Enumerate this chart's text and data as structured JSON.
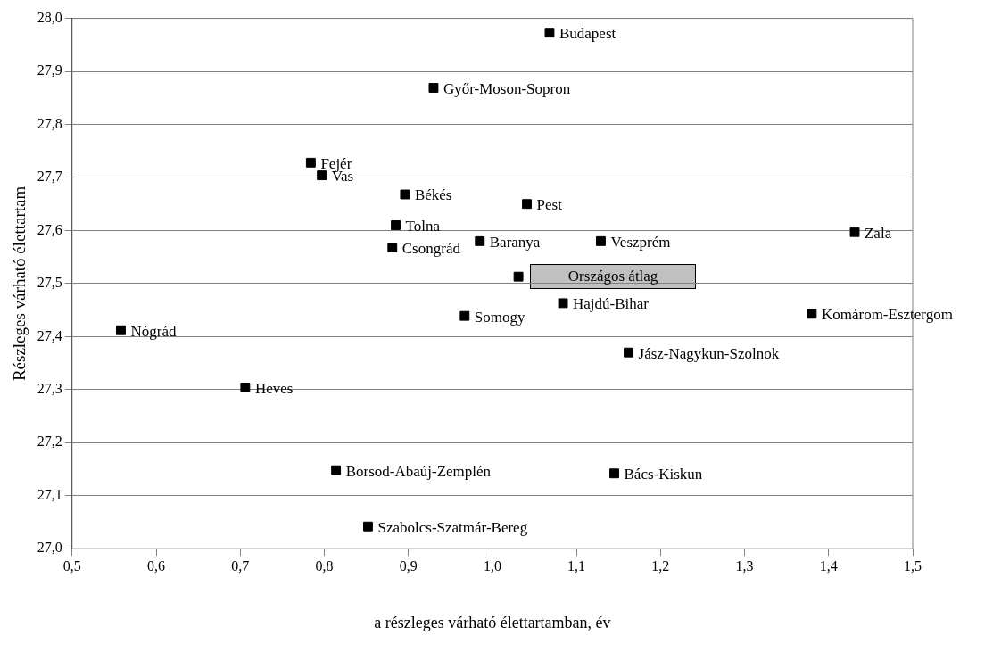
{
  "chart_data": {
    "type": "scatter",
    "xlabel": "a részleges várható élettartamban, év",
    "ylabel": "Részleges várható élettartam",
    "xlim": [
      0.5,
      1.5
    ],
    "xticks": [
      {
        "value": 0.5,
        "label": "0,5"
      },
      {
        "value": 0.6,
        "label": "0,6"
      },
      {
        "value": 0.7,
        "label": "0,7"
      },
      {
        "value": 0.8,
        "label": "0,8"
      },
      {
        "value": 0.9,
        "label": "0,9"
      },
      {
        "value": 1.0,
        "label": "1,0"
      },
      {
        "value": 1.1,
        "label": "1,1"
      },
      {
        "value": 1.2,
        "label": "1,2"
      },
      {
        "value": 1.3,
        "label": "1,3"
      },
      {
        "value": 1.4,
        "label": "1,4"
      },
      {
        "value": 1.5,
        "label": "1,5"
      }
    ],
    "ylim": [
      27.0,
      28.0
    ],
    "yticks": [
      {
        "value": 27.0,
        "label": "27,0"
      },
      {
        "value": 27.1,
        "label": "27,1"
      },
      {
        "value": 27.2,
        "label": "27,2"
      },
      {
        "value": 27.3,
        "label": "27,3"
      },
      {
        "value": 27.4,
        "label": "27,4"
      },
      {
        "value": 27.5,
        "label": "27,5"
      },
      {
        "value": 27.6,
        "label": "27,6"
      },
      {
        "value": 27.7,
        "label": "27,7"
      },
      {
        "value": 27.8,
        "label": "27,8"
      },
      {
        "value": 27.9,
        "label": "27,9"
      },
      {
        "value": 28.0,
        "label": "28,0"
      }
    ],
    "grid": "y",
    "legend": false,
    "marker": "square",
    "series": [
      {
        "color": "#000000",
        "x": [
          1.068,
          0.93,
          0.784,
          0.797,
          0.896,
          1.041,
          0.885,
          0.881,
          0.985,
          1.129,
          1.431,
          1.084,
          0.967,
          1.38,
          0.558,
          1.162,
          0.706,
          0.814,
          1.145,
          0.852
        ],
        "values": [
          27.973,
          27.869,
          27.728,
          27.704,
          27.668,
          27.65,
          27.61,
          27.568,
          27.58,
          27.58,
          27.597,
          27.463,
          27.439,
          27.443,
          27.412,
          27.37,
          27.304,
          27.148,
          27.142,
          27.042
        ]
      },
      {
        "name": "Országos átlag",
        "color": "#000000",
        "x": [
          1.031
        ],
        "values": [
          27.513
        ]
      }
    ],
    "annotations": [
      {
        "text": "Budapest",
        "x": 1.068,
        "y": 27.973
      },
      {
        "text": "Győr-Moson-Sopron",
        "x": 0.93,
        "y": 27.869
      },
      {
        "text": "Fejér",
        "x": 0.784,
        "y": 27.728
      },
      {
        "text": "Vas",
        "x": 0.797,
        "y": 27.704
      },
      {
        "text": "Békés",
        "x": 0.896,
        "y": 27.668
      },
      {
        "text": "Pest",
        "x": 1.041,
        "y": 27.65
      },
      {
        "text": "Tolna",
        "x": 0.885,
        "y": 27.61
      },
      {
        "text": "Csongrád",
        "x": 0.881,
        "y": 27.568
      },
      {
        "text": "Baranya",
        "x": 0.985,
        "y": 27.58
      },
      {
        "text": "Veszprém",
        "x": 1.129,
        "y": 27.58
      },
      {
        "text": "Zala",
        "x": 1.431,
        "y": 27.597
      },
      {
        "text": "Hajdú-Bihar",
        "x": 1.084,
        "y": 27.463
      },
      {
        "text": "Somogy",
        "x": 0.967,
        "y": 27.439
      },
      {
        "text": "Komárom-Esztergom",
        "x": 1.38,
        "y": 27.443
      },
      {
        "text": "Nógrád",
        "x": 0.558,
        "y": 27.412
      },
      {
        "text": "Jász-Nagykun-Szolnok",
        "x": 1.162,
        "y": 27.37
      },
      {
        "text": "Heves",
        "x": 0.706,
        "y": 27.304
      },
      {
        "text": "Borsod-Abaúj-Zemplén",
        "x": 0.814,
        "y": 27.148
      },
      {
        "text": "Bács-Kiskun",
        "x": 1.145,
        "y": 27.142
      },
      {
        "text": "Szabolcs-Szatmár-Bereg",
        "x": 0.852,
        "y": 27.042
      }
    ]
  }
}
